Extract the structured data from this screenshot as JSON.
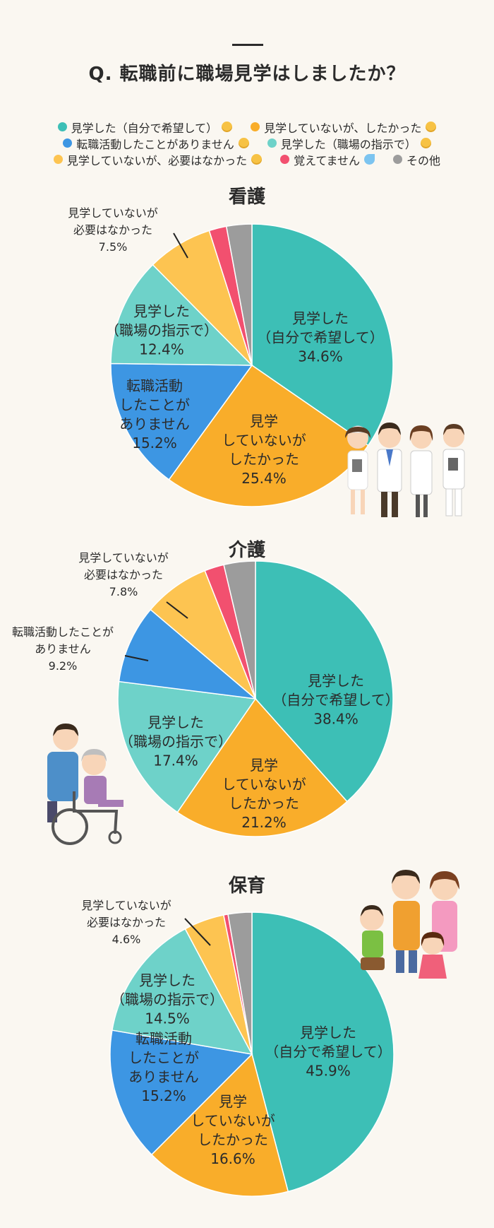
{
  "header": {
    "title": "Q. 転職前に職場見学はしましたか？"
  },
  "legend": [
    {
      "label": "見学した（自分で希望して）",
      "color": "#3dbfb6",
      "icon": "person-raising-hand-emoji"
    },
    {
      "label": "見学していないが、したかった",
      "color": "#f9ad2a",
      "icon": "pleading-face-emoji"
    },
    {
      "label": "転職活動したことがありません",
      "color": "#3d96e3",
      "icon": "sunglasses-face-emoji"
    },
    {
      "label": "見学した（職場の指示で）",
      "color": "#6ed2c9",
      "icon": "smiling-face-emoji"
    },
    {
      "label": "見学していないが、必要はなかった",
      "color": "#fdc451",
      "icon": "thinking-face-emoji"
    },
    {
      "label": "覚えてません",
      "color": "#f2506f",
      "icon": "sweat-droplets-emoji"
    },
    {
      "label": "その他",
      "color": "#9c9c9c",
      "icon": ""
    }
  ],
  "chart_data": [
    {
      "type": "pie",
      "title": "看護",
      "categories": [
        "見学した（自分で希望して）",
        "見学していないが、したかった",
        "転職活動したことがありません",
        "見学した（職場の指示で）",
        "見学していないが、必要はなかった",
        "覚えてません",
        "その他"
      ],
      "values": [
        34.6,
        25.4,
        15.2,
        12.4,
        7.5,
        2.0,
        2.9
      ],
      "labels": [
        [
          "見学した",
          "（自分で希望して）",
          "34.6%"
        ],
        [
          "見学",
          "していないが",
          "したかった",
          "25.4%"
        ],
        [
          "転職活動",
          "したことが",
          "ありません",
          "15.2%"
        ],
        [
          "見学した",
          "（職場の指示で）",
          "12.4%"
        ],
        [
          "見学していないが",
          "必要はなかった",
          "7.5%"
        ],
        [],
        []
      ]
    },
    {
      "type": "pie",
      "title": "介護",
      "categories": [
        "見学した（自分で希望して）",
        "見学していないが、したかった",
        "見学した（職場の指示で）",
        "転職活動したことがありません",
        "見学していないが、必要はなかった",
        "覚えてません",
        "その他"
      ],
      "values": [
        38.4,
        21.2,
        17.4,
        9.2,
        7.8,
        2.3,
        3.7
      ],
      "labels": [
        [
          "見学した",
          "（自分で希望して）",
          "38.4%"
        ],
        [
          "見学",
          "していないが",
          "したかった",
          "21.2%"
        ],
        [
          "見学した",
          "（職場の指示で）",
          "17.4%"
        ],
        [
          "転職活動したことが",
          "ありません",
          "9.2%"
        ],
        [
          "見学していないが",
          "必要はなかった",
          "7.8%"
        ],
        [],
        []
      ]
    },
    {
      "type": "pie",
      "title": "保育",
      "categories": [
        "見学した（自分で希望して）",
        "見学していないが、したかった",
        "転職活動したことがありません",
        "見学した（職場の指示で）",
        "見学していないが、必要はなかった",
        "覚えてません",
        "その他"
      ],
      "values": [
        45.9,
        16.6,
        15.2,
        14.5,
        4.6,
        0.5,
        2.7
      ],
      "labels": [
        [
          "見学した",
          "（自分で希望して）",
          "45.9%"
        ],
        [
          "見学",
          "していないが",
          "したかった",
          "16.6%"
        ],
        [
          "転職活動",
          "したことが",
          "ありません",
          "15.2%"
        ],
        [
          "見学した",
          "（職場の指示で）",
          "14.5%"
        ],
        [
          "見学していないが",
          "必要はなかった",
          "4.6%"
        ],
        [],
        []
      ]
    }
  ],
  "colors": {
    "見学した（自分で希望して）": "#3dbfb6",
    "見学していないが、したかった": "#f9ad2a",
    "転職活動したことがありません": "#3d96e3",
    "見学した（職場の指示で）": "#6ed2c9",
    "見学していないが、必要はなかった": "#fdc451",
    "覚えてません": "#f2506f",
    "その他": "#9c9c9c"
  }
}
